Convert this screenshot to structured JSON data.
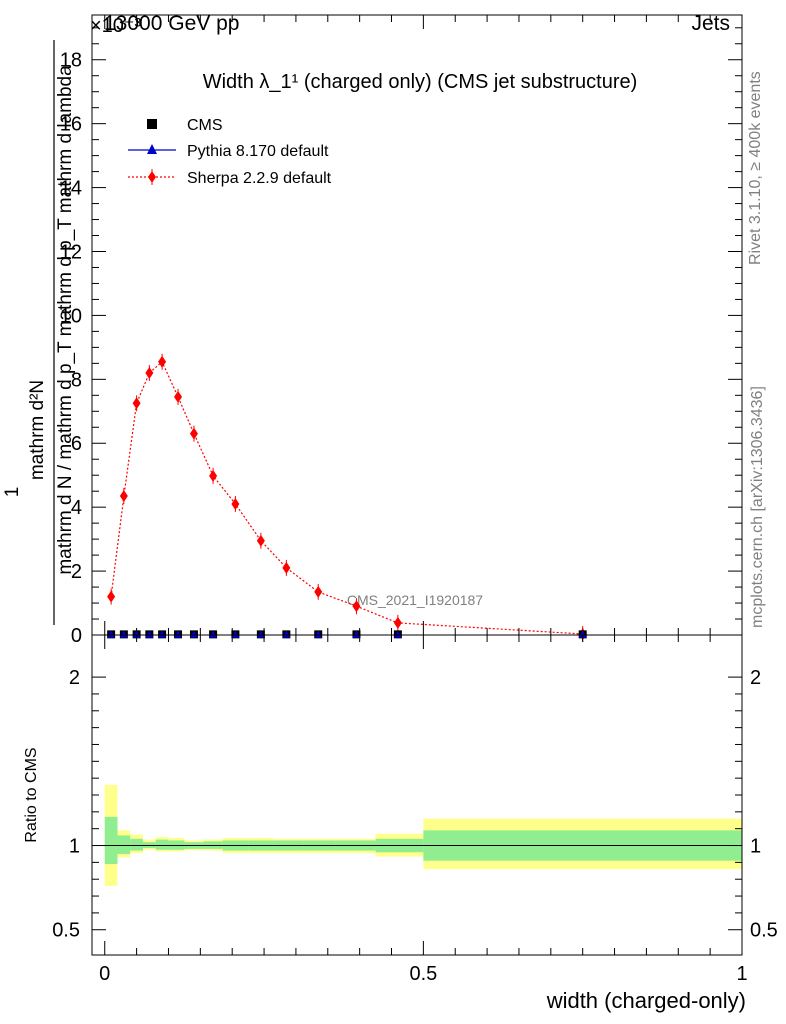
{
  "header": {
    "left": "13000 GeV pp",
    "right": "Jets",
    "exponent": "×10⁻³"
  },
  "side_labels": {
    "rivet": "Rivet 3.1.10, ≥ 400k events",
    "mcplots": "mcplots.cern.ch [arXiv:1306.3436]"
  },
  "watermark": "CMS_2021_I1920187",
  "chart_data": [
    {
      "type": "scatter",
      "title": "Width λ_1¹ (charged only) (CMS jet substructure)",
      "ylabel": {
        "numerator": "mathrm d²N",
        "denominator": "mathrm d N / mathrm d p_T mathrm d p_T mathrm d lambda",
        "prefix": "1"
      },
      "xlabel": "",
      "xlim": [
        -0.02,
        1.0
      ],
      "ylim": [
        0,
        19.4
      ],
      "y_scale_note": "×10⁻³",
      "yticks": [
        0,
        2,
        4,
        6,
        8,
        10,
        12,
        14,
        16,
        18
      ],
      "legend_position": "top-left",
      "legend": [
        "CMS",
        "Pythia 8.170 default",
        "Sherpa 2.2.9 default"
      ],
      "series": [
        {
          "name": "Sherpa 2.2.9 default",
          "color": "#ff0000",
          "marker": "diamond",
          "line": "dotted",
          "x": [
            0.01,
            0.03,
            0.05,
            0.07,
            0.09,
            0.115,
            0.14,
            0.17,
            0.205,
            0.245,
            0.285,
            0.335,
            0.395,
            0.46,
            0.75
          ],
          "y": [
            1.2,
            4.35,
            7.25,
            8.2,
            8.55,
            7.45,
            6.3,
            4.98,
            4.1,
            2.95,
            2.1,
            1.35,
            0.9,
            0.38,
            0.03
          ]
        },
        {
          "name": "CMS",
          "color": "#000000",
          "marker": "square",
          "x": [
            0.01,
            0.03,
            0.05,
            0.07,
            0.09,
            0.115,
            0.14,
            0.17,
            0.205,
            0.245,
            0.285,
            0.335,
            0.395,
            0.46,
            0.75
          ],
          "y": [
            0.02,
            0.02,
            0.02,
            0.02,
            0.02,
            0.02,
            0.02,
            0.02,
            0.02,
            0.02,
            0.02,
            0.02,
            0.02,
            0.02,
            0.02
          ]
        },
        {
          "name": "Pythia 8.170 default",
          "color": "#0000cc",
          "marker": "triangle",
          "line": "solid",
          "x": [],
          "y": []
        }
      ]
    },
    {
      "type": "area",
      "title": "",
      "ylabel": "Ratio to CMS",
      "xlabel": "width (charged-only)",
      "xlim": [
        -0.02,
        1.0
      ],
      "ylim": [
        0.35,
        2.25
      ],
      "yticks": [
        "0.5",
        "1",
        "2"
      ],
      "xticks": [
        "0",
        "0.5",
        "1"
      ],
      "reference_line": 1,
      "bins": [
        {
          "x0": 0.0,
          "x1": 0.02,
          "stat_lo": 0.89,
          "stat_hi": 1.17,
          "tot_lo": 0.76,
          "tot_hi": 1.36
        },
        {
          "x0": 0.02,
          "x1": 0.04,
          "stat_lo": 0.95,
          "stat_hi": 1.06,
          "tot_lo": 0.93,
          "tot_hi": 1.09
        },
        {
          "x0": 0.04,
          "x1": 0.06,
          "stat_lo": 0.97,
          "stat_hi": 1.04,
          "tot_lo": 0.955,
          "tot_hi": 1.065
        },
        {
          "x0": 0.06,
          "x1": 0.08,
          "stat_lo": 0.985,
          "stat_hi": 1.02,
          "tot_lo": 0.975,
          "tot_hi": 1.035
        },
        {
          "x0": 0.08,
          "x1": 0.1,
          "stat_lo": 0.975,
          "stat_hi": 1.035,
          "tot_lo": 0.965,
          "tot_hi": 1.05
        },
        {
          "x0": 0.1,
          "x1": 0.125,
          "stat_lo": 0.975,
          "stat_hi": 1.03,
          "tot_lo": 0.965,
          "tot_hi": 1.045
        },
        {
          "x0": 0.125,
          "x1": 0.155,
          "stat_lo": 0.98,
          "stat_hi": 1.02,
          "tot_lo": 0.972,
          "tot_hi": 1.03
        },
        {
          "x0": 0.155,
          "x1": 0.185,
          "stat_lo": 0.98,
          "stat_hi": 1.025,
          "tot_lo": 0.97,
          "tot_hi": 1.035
        },
        {
          "x0": 0.185,
          "x1": 0.225,
          "stat_lo": 0.97,
          "stat_hi": 1.03,
          "tot_lo": 0.955,
          "tot_hi": 1.045
        },
        {
          "x0": 0.225,
          "x1": 0.265,
          "stat_lo": 0.97,
          "stat_hi": 1.03,
          "tot_lo": 0.955,
          "tot_hi": 1.045
        },
        {
          "x0": 0.265,
          "x1": 0.31,
          "stat_lo": 0.97,
          "stat_hi": 1.03,
          "tot_lo": 0.955,
          "tot_hi": 1.04
        },
        {
          "x0": 0.31,
          "x1": 0.36,
          "stat_lo": 0.97,
          "stat_hi": 1.03,
          "tot_lo": 0.955,
          "tot_hi": 1.04
        },
        {
          "x0": 0.36,
          "x1": 0.425,
          "stat_lo": 0.97,
          "stat_hi": 1.03,
          "tot_lo": 0.955,
          "tot_hi": 1.04
        },
        {
          "x0": 0.425,
          "x1": 0.5,
          "stat_lo": 0.96,
          "stat_hi": 1.04,
          "tot_lo": 0.935,
          "tot_hi": 1.07
        },
        {
          "x0": 0.5,
          "x1": 1.0,
          "stat_lo": 0.91,
          "stat_hi": 1.09,
          "tot_lo": 0.86,
          "tot_hi": 1.16
        }
      ],
      "colors": {
        "stat": "#90ee90",
        "syst": "#ffff8c",
        "line": "#000000"
      }
    }
  ]
}
